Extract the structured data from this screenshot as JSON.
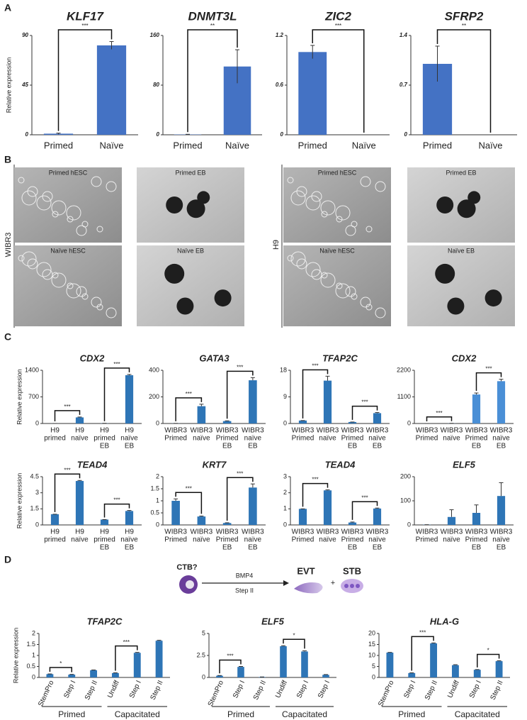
{
  "panel_labels": [
    "A",
    "B",
    "C",
    "D"
  ],
  "images": [
    {
      "label": "WIBR3",
      "tiles": [
        "Primed hESC",
        "Primed EB",
        "Naïve hESC",
        "Naïve EB"
      ]
    },
    {
      "label": "H9",
      "tiles": [
        "Primed hESC",
        "Primed EB",
        "Naïve hESC",
        "Naïve EB"
      ]
    }
  ],
  "diagram": {
    "start": "CTB?",
    "arrow_top": "BMP4",
    "arrow_bottom": "Step II",
    "product1": "EVT",
    "plus": "+",
    "product2": "STB"
  },
  "chart_data": [
    {
      "type": "bar",
      "title": "KLF17",
      "ylabel": "Relative expression",
      "categories": [
        "Primed",
        "Naïve"
      ],
      "values": [
        1,
        81
      ],
      "errors": [
        0.5,
        3.5
      ],
      "brackets": [
        {
          "pair": [
            0,
            1
          ],
          "label": "***"
        }
      ],
      "ylim": [
        0,
        90
      ],
      "yticks": [
        0,
        45,
        90
      ],
      "color": "#4472c4"
    },
    {
      "type": "bar",
      "title": "DNMT3L",
      "categories": [
        "Primed",
        "Naïve"
      ],
      "values": [
        0.5,
        110
      ],
      "errors": [
        0.3,
        27
      ],
      "brackets": [
        {
          "pair": [
            0,
            1
          ],
          "label": "**"
        }
      ],
      "ylim": [
        0,
        160
      ],
      "yticks": [
        0,
        80,
        160
      ],
      "color": "#4472c4"
    },
    {
      "type": "bar",
      "title": "ZIC2",
      "categories": [
        "Primed",
        "Naïve"
      ],
      "values": [
        1,
        0
      ],
      "errors": [
        0.08,
        0
      ],
      "brackets": [
        {
          "pair": [
            0,
            1
          ],
          "label": "***"
        }
      ],
      "ylim": [
        0,
        1.2
      ],
      "yticks": [
        0,
        0.6,
        1.2
      ],
      "color": "#4472c4"
    },
    {
      "type": "bar",
      "title": "SFRP2",
      "categories": [
        "Primed",
        "Naïve"
      ],
      "values": [
        1,
        0
      ],
      "errors": [
        0.25,
        0
      ],
      "brackets": [
        {
          "pair": [
            0,
            1
          ],
          "label": "**"
        }
      ],
      "ylim": [
        0,
        1.4
      ],
      "yticks": [
        0,
        0.7,
        1.4
      ],
      "color": "#4472c4"
    },
    {
      "type": "bar",
      "title": "CDX2",
      "ylabel": "Relative expression",
      "categories": [
        [
          "H9",
          "primed"
        ],
        [
          "H9",
          "naïve"
        ],
        [
          "H9",
          "primed",
          "EB"
        ],
        [
          "H9",
          "naïve",
          "EB"
        ]
      ],
      "values": [
        1,
        160,
        5,
        1270
      ],
      "errors": [
        0,
        10,
        0,
        20
      ],
      "brackets": [
        {
          "pair": [
            0,
            1
          ],
          "label": "***"
        },
        {
          "pair": [
            2,
            3
          ],
          "label": "***"
        }
      ],
      "ylim": [
        0,
        1400
      ],
      "yticks": [
        0,
        700,
        1400
      ],
      "color": "#2e75b6"
    },
    {
      "type": "bar",
      "title": "GATA3",
      "categories": [
        [
          "WIBR3",
          "Primed"
        ],
        [
          "WIBR3",
          "naïve"
        ],
        [
          "WIBR3",
          "Primed",
          "EB"
        ],
        [
          "WIBR3",
          "naïve",
          "EB"
        ]
      ],
      "values": [
        1,
        130,
        18,
        325
      ],
      "errors": [
        0,
        15,
        2,
        20
      ],
      "brackets": [
        {
          "pair": [
            0,
            1
          ],
          "label": "***"
        },
        {
          "pair": [
            2,
            3
          ],
          "label": "***"
        }
      ],
      "ylim": [
        0,
        400
      ],
      "yticks": [
        0,
        200,
        400
      ],
      "color": "#2e75b6"
    },
    {
      "type": "bar",
      "title": "TFAP2C",
      "categories": [
        [
          "WIBR3",
          "Primed"
        ],
        [
          "WIBR3",
          "naïve"
        ],
        [
          "WIBR3",
          "Primed",
          "EB"
        ],
        [
          "WIBR3",
          "naïve",
          "EB"
        ]
      ],
      "values": [
        1,
        14.5,
        0.5,
        3.5
      ],
      "errors": [
        0,
        1.5,
        0,
        0.2
      ],
      "brackets": [
        {
          "pair": [
            0,
            1
          ],
          "label": "***"
        },
        {
          "pair": [
            2,
            3
          ],
          "label": "***"
        }
      ],
      "ylim": [
        0,
        18
      ],
      "yticks": [
        0,
        9,
        18
      ],
      "color": "#2e75b6"
    },
    {
      "type": "bar",
      "title": "CDX2",
      "categories": [
        [
          "WIBR3",
          "Primed"
        ],
        [
          "WIBR3",
          "naïve"
        ],
        [
          "WIBR3",
          "Primed",
          "EB"
        ],
        [
          "WIBR3",
          "naïve",
          "EB"
        ]
      ],
      "values": [
        1,
        5,
        1200,
        1750
      ],
      "errors": [
        0,
        2,
        60,
        80
      ],
      "brackets": [
        {
          "pair": [
            0,
            1
          ],
          "label": "***"
        },
        {
          "pair": [
            2,
            3
          ],
          "label": "***"
        }
      ],
      "ylim": [
        0,
        2200
      ],
      "yticks": [
        0,
        1100,
        2200
      ],
      "color": "#4a8fd6"
    },
    {
      "type": "bar",
      "title": "TEAD4",
      "ylabel": "Relative expression",
      "categories": [
        [
          "H9",
          "primed"
        ],
        [
          "H9",
          "naïve"
        ],
        [
          "H9",
          "primed",
          "EB"
        ],
        [
          "H9",
          "naïve",
          "EB"
        ]
      ],
      "values": [
        1,
        4.1,
        0.5,
        1.3
      ],
      "errors": [
        0,
        0.05,
        0,
        0.05
      ],
      "brackets": [
        {
          "pair": [
            0,
            1
          ],
          "label": "***"
        },
        {
          "pair": [
            2,
            3
          ],
          "label": "***"
        }
      ],
      "ylim": [
        0,
        4.5
      ],
      "yticks": [
        0,
        1.5,
        3,
        4.5
      ],
      "color": "#2e75b6"
    },
    {
      "type": "bar",
      "title": "KRT7",
      "categories": [
        [
          "WIBR3",
          "Primed"
        ],
        [
          "WIBR3",
          "naïve"
        ],
        [
          "WIBR3",
          "Primed",
          "EB"
        ],
        [
          "WIBR3",
          "naïve",
          "EB"
        ]
      ],
      "values": [
        1,
        0.35,
        0.08,
        1.55
      ],
      "errors": [
        0.08,
        0.02,
        0.01,
        0.15
      ],
      "brackets": [
        {
          "pair": [
            0,
            1
          ],
          "label": "***"
        },
        {
          "pair": [
            2,
            3
          ],
          "label": "***"
        }
      ],
      "ylim": [
        0,
        2
      ],
      "yticks": [
        0,
        0.5,
        1,
        1.5,
        2
      ],
      "color": "#2e75b6"
    },
    {
      "type": "bar",
      "title": "TEAD4",
      "categories": [
        [
          "WIBR3",
          "Primed"
        ],
        [
          "WIBR3",
          "naïve"
        ],
        [
          "WIBR3",
          "Primed",
          "EB"
        ],
        [
          "WIBR3",
          "naïve",
          "EB"
        ]
      ],
      "values": [
        1,
        2.15,
        0.15,
        1.02
      ],
      "errors": [
        0,
        0.03,
        0.03,
        0.03
      ],
      "brackets": [
        {
          "pair": [
            0,
            1
          ],
          "label": "***"
        },
        {
          "pair": [
            2,
            3
          ],
          "label": "***"
        }
      ],
      "ylim": [
        0,
        3
      ],
      "yticks": [
        0,
        1,
        2,
        3
      ],
      "color": "#2e75b6"
    },
    {
      "type": "bar",
      "title": "ELF5",
      "categories": [
        [
          "WIBR3",
          "Primed"
        ],
        [
          "WIBR3",
          "naïve"
        ],
        [
          "WIBR3",
          "Primed",
          "EB"
        ],
        [
          "WIBR3",
          "naïve",
          "EB"
        ]
      ],
      "values": [
        1,
        33,
        50,
        120
      ],
      "errors": [
        0,
        30,
        33,
        55
      ],
      "brackets": [],
      "ylim": [
        0,
        200
      ],
      "yticks": [
        0,
        100,
        200
      ],
      "color": "#2e75b6"
    },
    {
      "type": "bar",
      "title": "TFAP2C",
      "ylabel": "Relative expression",
      "categories": [
        "StemPro",
        "Step I",
        "Step II",
        "Undiff",
        "Step I",
        "Step II"
      ],
      "values": [
        0.15,
        0.13,
        0.33,
        0.2,
        1.12,
        1.67
      ],
      "errors": [
        0.01,
        0.01,
        0.01,
        0.01,
        0.02,
        0.02
      ],
      "brackets": [
        {
          "pair": [
            0,
            1
          ],
          "label": "*"
        },
        {
          "pair": [
            3,
            4
          ],
          "label": "***"
        }
      ],
      "groups": [
        {
          "label": "Primed",
          "span": [
            0,
            2
          ]
        },
        {
          "label": "Capacitated",
          "span": [
            3,
            5
          ]
        }
      ],
      "ylim": [
        0,
        2
      ],
      "yticks": [
        0,
        0.5,
        1,
        1.5,
        2
      ],
      "color": "#2e75b6"
    },
    {
      "type": "bar",
      "title": "ELF5",
      "categories": [
        "StemPro",
        "Step I",
        "Step II",
        "Undiff",
        "Step I",
        "Step I"
      ],
      "values": [
        0.2,
        1.2,
        0.05,
        3.55,
        2.95,
        0.3
      ],
      "errors": [
        0.02,
        0.05,
        0.01,
        0.06,
        0.08,
        0.03
      ],
      "brackets": [
        {
          "pair": [
            0,
            1
          ],
          "label": "***"
        },
        {
          "pair": [
            3,
            4
          ],
          "label": "*"
        }
      ],
      "groups": [
        {
          "label": "Primed",
          "span": [
            0,
            2
          ]
        },
        {
          "label": "Capacitated",
          "span": [
            3,
            5
          ]
        }
      ],
      "ylim": [
        0,
        5
      ],
      "yticks": [
        0,
        2.5,
        5
      ],
      "color": "#2e75b6"
    },
    {
      "type": "bar",
      "title": "HLA-G",
      "categories": [
        "StemPro",
        "Step I",
        "Step II",
        "Undiff",
        "Step I",
        "Step II"
      ],
      "values": [
        11.3,
        2,
        15.5,
        5.6,
        3.5,
        7.4
      ],
      "errors": [
        0.1,
        0.1,
        0.2,
        0.2,
        0.1,
        0.2
      ],
      "brackets": [
        {
          "pair": [
            1,
            2
          ],
          "label": "***"
        },
        {
          "pair": [
            4,
            5
          ],
          "label": "*"
        }
      ],
      "groups": [
        {
          "label": "Primed",
          "span": [
            0,
            2
          ]
        },
        {
          "label": "Capacitated",
          "span": [
            3,
            5
          ]
        }
      ],
      "ylim": [
        0,
        20
      ],
      "yticks": [
        0,
        5,
        10,
        15,
        20
      ],
      "color": "#2e75b6"
    }
  ]
}
